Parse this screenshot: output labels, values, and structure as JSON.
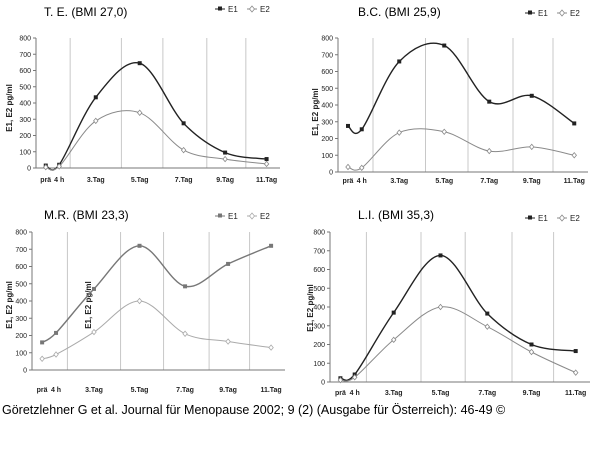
{
  "caption": "Göretzlehner G et al. Journal für Menopause 2002; 9 (2) (Ausgabe für Österreich): 46-49 ©",
  "chart_data": [
    {
      "type": "line",
      "title": "T. E. (BMI 27,0)",
      "ylabel": "E1, E2 pg/ml",
      "categories": [
        "prä",
        "4 h",
        "3.Tag",
        "5.Tag",
        "7.Tag",
        "9.Tag",
        "11.Tag"
      ],
      "ylim": [
        0,
        800
      ],
      "yticks": [
        0,
        100,
        200,
        300,
        400,
        500,
        600,
        700,
        800
      ],
      "legend": "top-right",
      "grid": "vertical",
      "series": [
        {
          "name": "E1",
          "color": "#222222",
          "marker": "square",
          "values": [
            15,
            20,
            435,
            645,
            275,
            95,
            55
          ]
        },
        {
          "name": "E2",
          "color": "#8a8a8a",
          "marker": "diamond",
          "values": [
            5,
            10,
            290,
            340,
            110,
            55,
            25
          ]
        }
      ]
    },
    {
      "type": "line",
      "title": "B.C. (BMI 25,9)",
      "ylabel": "E1, E2 pg/ml",
      "categories": [
        "prä",
        "4 h",
        "3.Tag",
        "5.Tag",
        "7.Tag",
        "9.Tag",
        "11.Tag"
      ],
      "ylim": [
        0,
        800
      ],
      "yticks": [
        0,
        100,
        200,
        300,
        400,
        500,
        600,
        700,
        800
      ],
      "legend": "top-right",
      "grid": "vertical",
      "series": [
        {
          "name": "E1",
          "color": "#222222",
          "marker": "square",
          "values": [
            275,
            255,
            660,
            755,
            420,
            455,
            290
          ]
        },
        {
          "name": "E2",
          "color": "#8a8a8a",
          "marker": "diamond",
          "values": [
            30,
            25,
            235,
            240,
            125,
            150,
            100
          ]
        }
      ]
    },
    {
      "type": "line",
      "title": "M.R. (BMI 23,3)",
      "ylabel": "E1, E2 pg/ml",
      "ylabel_inner": "E1, E2 pg/ml",
      "categories": [
        "prä",
        "4 h",
        "3.Tag",
        "5.Tag",
        "7.Tag",
        "9.Tag",
        "11.Tag"
      ],
      "ylim": [
        0,
        800
      ],
      "yticks": [
        0,
        100,
        200,
        300,
        400,
        500,
        600,
        700,
        800
      ],
      "legend": "top-right",
      "grid": "vertical",
      "series": [
        {
          "name": "E1",
          "color": "#777777",
          "marker": "square",
          "values": [
            160,
            215,
            470,
            720,
            485,
            615,
            720
          ]
        },
        {
          "name": "E2",
          "color": "#aaaaaa",
          "marker": "diamond",
          "values": [
            65,
            90,
            220,
            400,
            210,
            165,
            130
          ]
        }
      ]
    },
    {
      "type": "line",
      "title": "L.I. (BMI 35,3)",
      "ylabel": "E1, E2 pg/ml",
      "categories": [
        "prä",
        "4 h",
        "3.Tag",
        "5.Tag",
        "7.Tag",
        "9.Tag",
        "11.Tag"
      ],
      "ylim": [
        0,
        800
      ],
      "yticks": [
        0,
        100,
        200,
        300,
        400,
        500,
        600,
        700,
        800
      ],
      "legend": "top-right",
      "grid": "vertical",
      "series": [
        {
          "name": "E1",
          "color": "#222222",
          "marker": "square",
          "values": [
            20,
            40,
            370,
            675,
            365,
            200,
            165
          ]
        },
        {
          "name": "E2",
          "color": "#8a8a8a",
          "marker": "diamond",
          "values": [
            10,
            25,
            225,
            400,
            295,
            160,
            50
          ]
        }
      ]
    }
  ]
}
